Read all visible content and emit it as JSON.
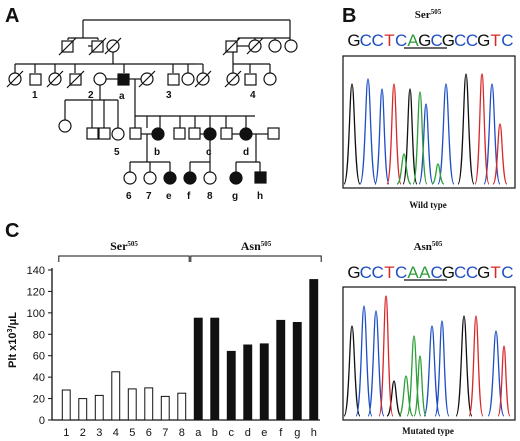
{
  "panels": {
    "a": "A",
    "b": "B",
    "c": "C"
  },
  "pedigree": {
    "labels": {
      "n1": "1",
      "n2": "2",
      "n3": "3",
      "n4": "4",
      "n5": "5",
      "a": "a",
      "b": "b",
      "c": "c",
      "d": "d",
      "n6": "6",
      "n7": "7",
      "n8": "8",
      "e": "e",
      "f": "f",
      "g": "g",
      "h": "h"
    }
  },
  "sequencing": {
    "wild": {
      "title": "Ser",
      "title_sup": "505",
      "caption": "Wild type",
      "bases": [
        "G",
        "C",
        "C",
        "T",
        "C",
        "A",
        "G",
        "C",
        "G",
        "C",
        "C",
        "G",
        "T",
        "C"
      ]
    },
    "mutant": {
      "title": "Asn",
      "title_sup": "505",
      "caption": "Mutated type",
      "bases": [
        "G",
        "C",
        "C",
        "T",
        "C",
        "A",
        "A",
        "C",
        "G",
        "C",
        "C",
        "G",
        "T",
        "C"
      ]
    },
    "base_colors": {
      "A": "#2e9e3a",
      "C": "#1f4fc4",
      "G": "#111111",
      "T": "#d8282a"
    }
  },
  "chart_data": {
    "type": "bar",
    "categories": [
      "1",
      "2",
      "3",
      "4",
      "5",
      "6",
      "7",
      "8",
      "a",
      "b",
      "c",
      "d",
      "e",
      "f",
      "g",
      "h"
    ],
    "values": [
      28,
      20,
      23,
      45,
      29,
      30,
      22,
      25,
      95,
      95,
      64,
      70,
      71,
      93,
      91,
      131
    ],
    "groups": [
      {
        "label": "Ser",
        "sup": "505",
        "from": 0,
        "to": 7,
        "fill": "#ffffff"
      },
      {
        "label": "Asn",
        "sup": "505",
        "from": 8,
        "to": 15,
        "fill": "#111111"
      }
    ],
    "ylabel": "Plt x10",
    "ylabel_sup": "3",
    "ylabel_unit": "/μL",
    "yticks": [
      0,
      20,
      40,
      60,
      80,
      100,
      120,
      140
    ],
    "ylim": [
      0,
      140
    ],
    "grid": false
  }
}
